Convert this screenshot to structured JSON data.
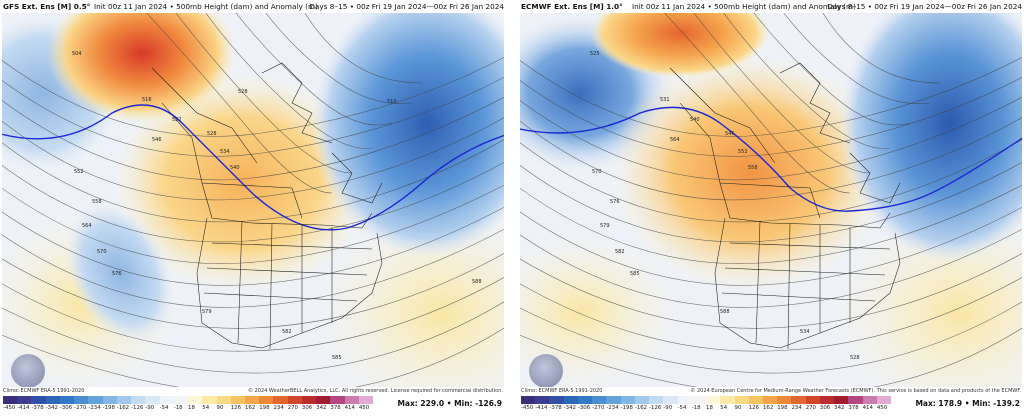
{
  "left": {
    "title": "GFS Ext. Ens [M] 0.5°",
    "info": "Init 00z 11 Jan 2024 • 500mb Height (dam) and Anomaly (m)",
    "dates": "Days 8–15 • 00z Fri 19 Jan 2024—00z Fri 26 Jan 2024",
    "climo": "Climo: ECMWF ERA-5 1991-2020",
    "copyright": "© 2024 WeatherBELL Analytics, LLC. All rights reserved. License required for commercial distribution.",
    "max_label": "Max: 229.0",
    "min_label": "Min: -126.9",
    "contour_labels": [
      "504",
      "516",
      "522",
      "528",
      "534",
      "540",
      "546",
      "552",
      "558",
      "564",
      "570",
      "576",
      "579",
      "582",
      "585",
      "588",
      "510",
      "528"
    ],
    "logo_text": "WeatherBELL"
  },
  "right": {
    "title": "ECMWF Ext. Ens [M] 1.0°",
    "info": "Init 00z 11 Jan 2024 • 500mb Height (dam) and Anomaly (m)",
    "dates": "Days 8–15 • 00z Fri 19 Jan 2024—00z Fri 26 Jan 2024",
    "climo": "Climo: ECMWF ERA-5 1991-2020",
    "copyright": "© 2024 European Centre for Medium-Range Weather Forecasts (ECMWF). This service is based on data and products of the ECMWF.",
    "max_label": "Max: 178.9",
    "min_label": "Min: -139.2",
    "contour_labels": [
      "525",
      "531",
      "540",
      "546",
      "552",
      "558",
      "564",
      "570",
      "576",
      "579",
      "582",
      "585",
      "588",
      "534",
      "528"
    ],
    "logo_text": "WeatherBELL"
  },
  "colorbar": {
    "ticks": [
      "-450",
      "-414",
      "-378",
      "-342",
      "-306",
      "-270",
      "-234",
      "-198",
      "-162",
      "-126",
      "-90",
      "-54",
      "-18",
      "18",
      "54",
      "90",
      "126",
      "162",
      "198",
      "234",
      "270",
      "306",
      "342",
      "378",
      "414",
      "450"
    ],
    "colors": [
      "#3d2d7a",
      "#3c3c93",
      "#3150a6",
      "#2e66b8",
      "#3479c6",
      "#4a8ed2",
      "#64a2dc",
      "#82b6e4",
      "#a1c9ec",
      "#c0dbf2",
      "#dbe9f7",
      "#eef4fa",
      "#f4f4f4",
      "#fdf6d8",
      "#fdeaa8",
      "#fbd883",
      "#f8c164",
      "#f3a64b",
      "#ec883a",
      "#e1672e",
      "#d04628",
      "#bb2d2a",
      "#a01d2e",
      "#b44782",
      "#cd7bb3",
      "#e0acd4"
    ]
  }
}
